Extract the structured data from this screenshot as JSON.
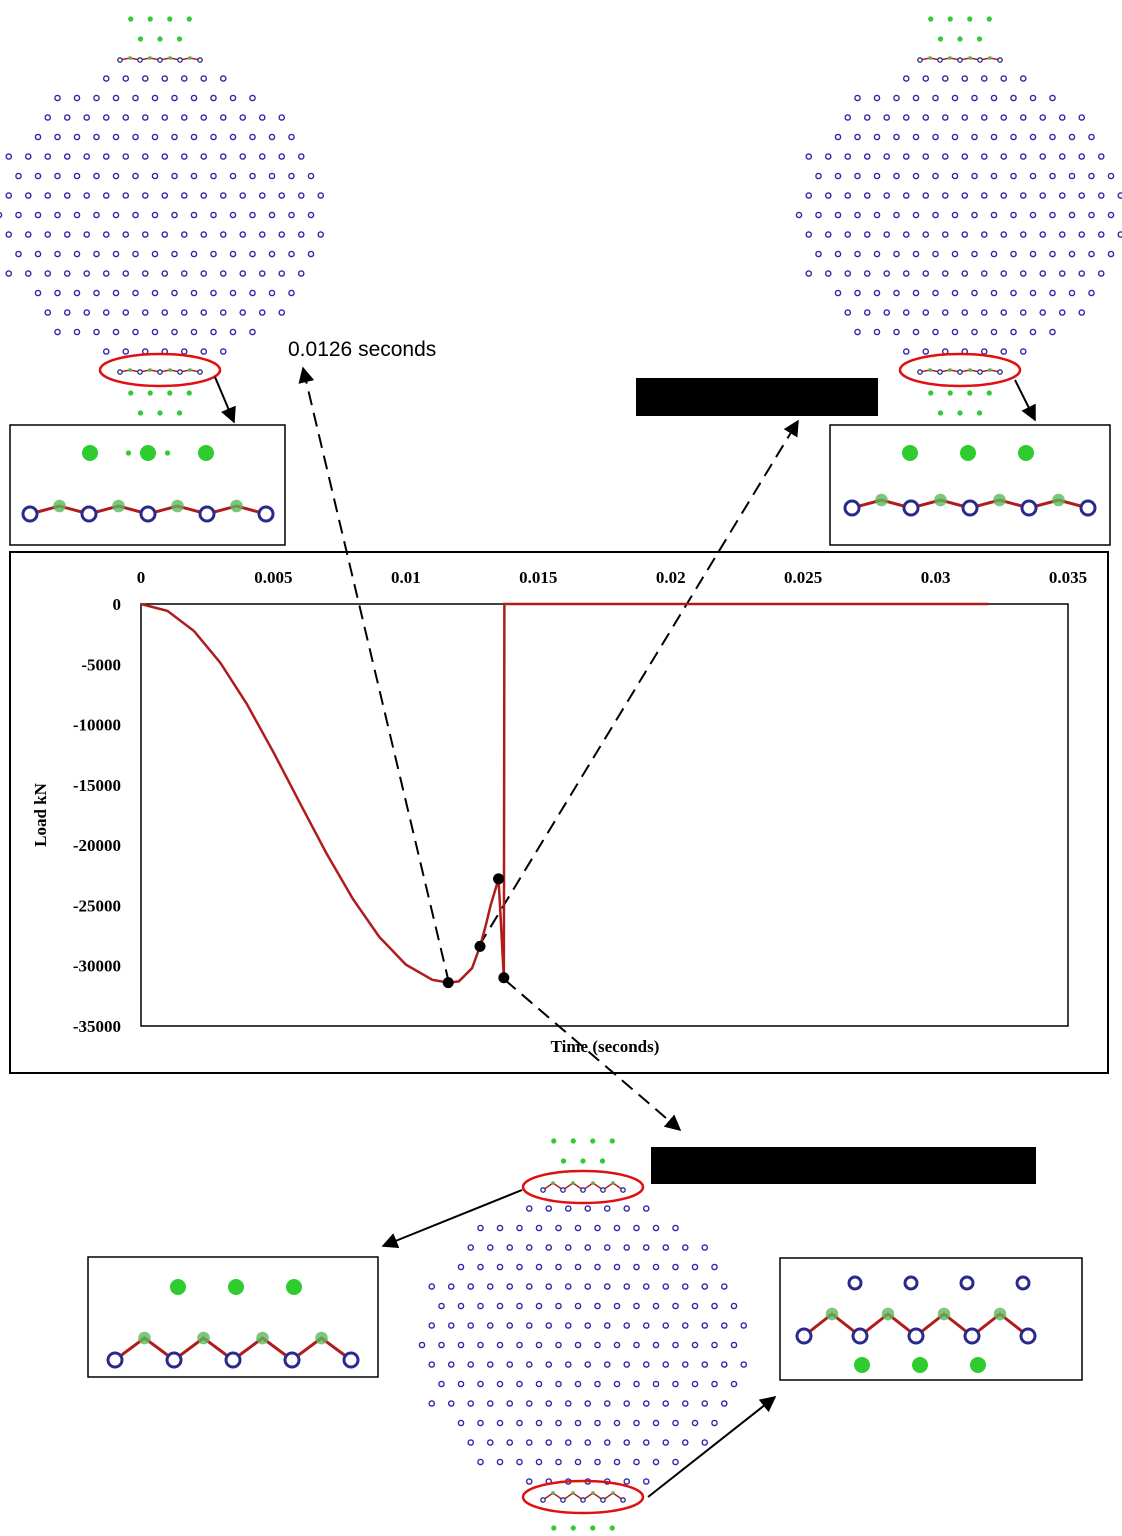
{
  "chart_data": {
    "type": "line",
    "xlabel": "Time (seconds)",
    "ylabel": "Load kN",
    "annotation": "0.0126 seconds",
    "x": [
      0,
      0.001,
      0.002,
      0.003,
      0.004,
      0.005,
      0.006,
      0.007,
      0.008,
      0.009,
      0.01,
      0.011,
      0.0116,
      0.012,
      0.0125,
      0.0128,
      0.013,
      0.0132,
      0.0135,
      0.0137,
      0.01372,
      0.032
    ],
    "values": [
      0,
      -570,
      -2240,
      -4890,
      -8310,
      -12290,
      -16510,
      -20670,
      -24460,
      -27620,
      -29910,
      -31170,
      -31400,
      -31300,
      -30200,
      -28400,
      -26800,
      -25000,
      -22800,
      -31000,
      0,
      0
    ],
    "color": "#b01c1c",
    "markers": {
      "x": [
        0.0116,
        0.0128,
        0.0135,
        0.0137
      ],
      "values": [
        -31400,
        -28400,
        -22800,
        -31000
      ]
    },
    "xlim": [
      0,
      0.035
    ],
    "xticks": [
      0,
      0.005,
      0.01,
      0.015,
      0.02,
      0.025,
      0.03,
      0.035
    ],
    "ylim": [
      -35000,
      0
    ],
    "yticks": [
      0,
      -5000,
      -10000,
      -15000,
      -20000,
      -25000,
      -30000,
      -35000
    ],
    "grid": false
  }
}
